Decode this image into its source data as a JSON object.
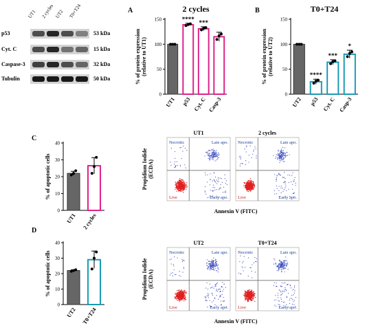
{
  "western_blot": {
    "lanes": [
      "UT1",
      "2 cycles",
      "UT2",
      "T0+T24"
    ],
    "proteins": [
      {
        "name": "p53",
        "size": "53 kDa",
        "intensity": [
          0.7,
          0.85,
          0.7,
          0.5
        ]
      },
      {
        "name": "Cyt. C",
        "size": "15 kDa",
        "intensity": [
          0.7,
          0.85,
          0.55,
          0.6
        ]
      },
      {
        "name": "Caspase-3",
        "size": "32 kDa",
        "intensity": [
          0.75,
          0.85,
          0.7,
          0.6
        ]
      },
      {
        "name": "Tubulin",
        "size": "50 kDa",
        "intensity": [
          0.9,
          0.9,
          0.9,
          0.9
        ]
      }
    ]
  },
  "colors": {
    "control": "#666666",
    "two_cycles": "#e0218a",
    "t0t24": "#1a9bb5",
    "flow_live": "#e02020",
    "flow_other": "#4050c0"
  },
  "chart_data": [
    {
      "panel": "A",
      "type": "bar",
      "title": "2 cycles",
      "ylabel": "% of protein expression (relative to UT1)",
      "categories": [
        "UT1",
        "p53",
        "Cyt. C",
        "Casp-3"
      ],
      "values": [
        100,
        139,
        131,
        115
      ],
      "errors": [
        0,
        3,
        4,
        9
      ],
      "significance": [
        "",
        "****",
        "***",
        ""
      ],
      "ylim": [
        0,
        150
      ],
      "yticks": [
        "0",
        "50",
        "100",
        "150"
      ]
    },
    {
      "panel": "B",
      "type": "bar",
      "title": "T0+T24",
      "ylabel": "% of protein expression (relative to UT2)",
      "categories": [
        "UT2",
        "p53",
        "Cyt. C",
        "Casp-3"
      ],
      "values": [
        100,
        25,
        64,
        80
      ],
      "errors": [
        0,
        5,
        5,
        8
      ],
      "significance": [
        "",
        "****",
        "***",
        "*"
      ],
      "ylim": [
        0,
        150
      ],
      "yticks": [
        "0",
        "50",
        "100",
        "150"
      ]
    },
    {
      "panel": "C",
      "type": "bar",
      "ylabel": "% of apoptotic cells",
      "categories": [
        "UT1",
        "2 cycles"
      ],
      "values": [
        22,
        26.5
      ],
      "points": [
        [
          21,
          22,
          23.5
        ],
        [
          22,
          26,
          31.5
        ]
      ],
      "errors": [
        1.2,
        4.8
      ],
      "ylim": [
        0,
        40
      ],
      "yticks": [
        "0",
        "10",
        "20",
        "30",
        "40"
      ]
    },
    {
      "panel": "D",
      "type": "bar",
      "ylabel": "% of apoptotic cells",
      "categories": [
        "UT2",
        "T0+T24"
      ],
      "values": [
        22,
        29
      ],
      "points": [
        [
          21.5,
          22,
          22.5
        ],
        [
          23,
          30,
          34
        ]
      ],
      "errors": [
        0.5,
        5.6
      ],
      "ylim": [
        0,
        40
      ],
      "yticks": [
        "0",
        "10",
        "20",
        "30",
        "40"
      ]
    }
  ],
  "flow": {
    "y_axis_label": "Propidium Iodide (ECDA)",
    "x_axis_label": "Annexin V (FITC)",
    "quadrants": {
      "tl": "Necrotic",
      "tr": "Late apo.",
      "bl": "Live",
      "br": "Early apo."
    },
    "rows": [
      {
        "panel": "C",
        "plots": [
          "UT1",
          "2 cycles"
        ]
      },
      {
        "panel": "D",
        "plots": [
          "UT2",
          "T0+T24"
        ]
      }
    ]
  }
}
